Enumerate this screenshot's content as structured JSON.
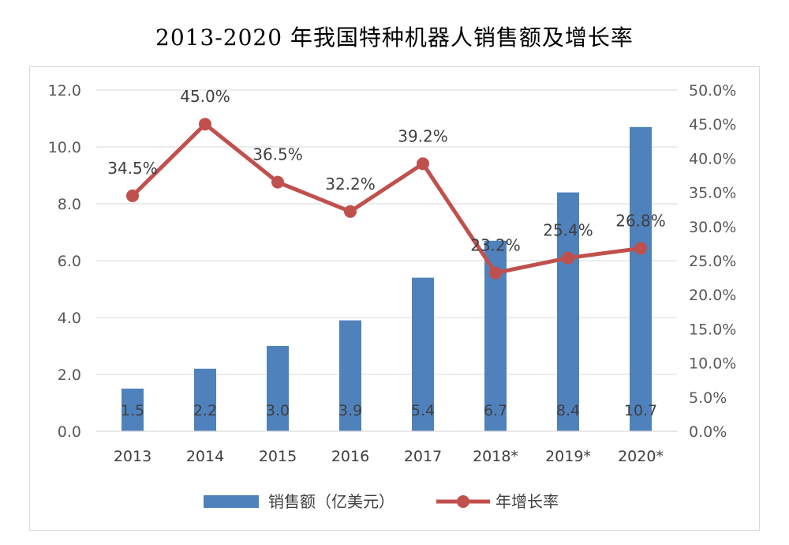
{
  "chart_data": {
    "type": "bar+line",
    "title": "2013-2020 年我国特种机器人销售额及增长率",
    "categories": [
      "2013",
      "2014",
      "2015",
      "2016",
      "2017",
      "2018*",
      "2019*",
      "2020*"
    ],
    "series": [
      {
        "name": "销售额（亿美元）",
        "type": "bar",
        "axis": "left",
        "color": "#4f81bd",
        "values": [
          1.5,
          2.2,
          3.0,
          3.9,
          5.4,
          6.7,
          8.4,
          10.7
        ],
        "labels": [
          "1.5",
          "2.2",
          "3.0",
          "3.9",
          "5.4",
          "6.7",
          "8.4",
          "10.7"
        ]
      },
      {
        "name": "年增长率",
        "type": "line",
        "axis": "right",
        "color": "#c0504d",
        "values": [
          34.5,
          45.0,
          36.5,
          32.2,
          39.2,
          23.2,
          25.4,
          26.8
        ],
        "labels": [
          "34.5%",
          "45.0%",
          "36.5%",
          "32.2%",
          "39.2%",
          "23.2%",
          "25.4%",
          "26.8%"
        ]
      }
    ],
    "y_left": {
      "range": [
        0,
        12
      ],
      "ticks": [
        "0.0",
        "2.0",
        "4.0",
        "6.0",
        "8.0",
        "10.0",
        "12.0"
      ]
    },
    "y_right": {
      "range": [
        0,
        50
      ],
      "ticks": [
        "0.0%",
        "5.0%",
        "10.0%",
        "15.0%",
        "20.0%",
        "25.0%",
        "30.0%",
        "35.0%",
        "40.0%",
        "45.0%",
        "50.0%"
      ]
    },
    "grid": true,
    "legend": "bottom"
  }
}
